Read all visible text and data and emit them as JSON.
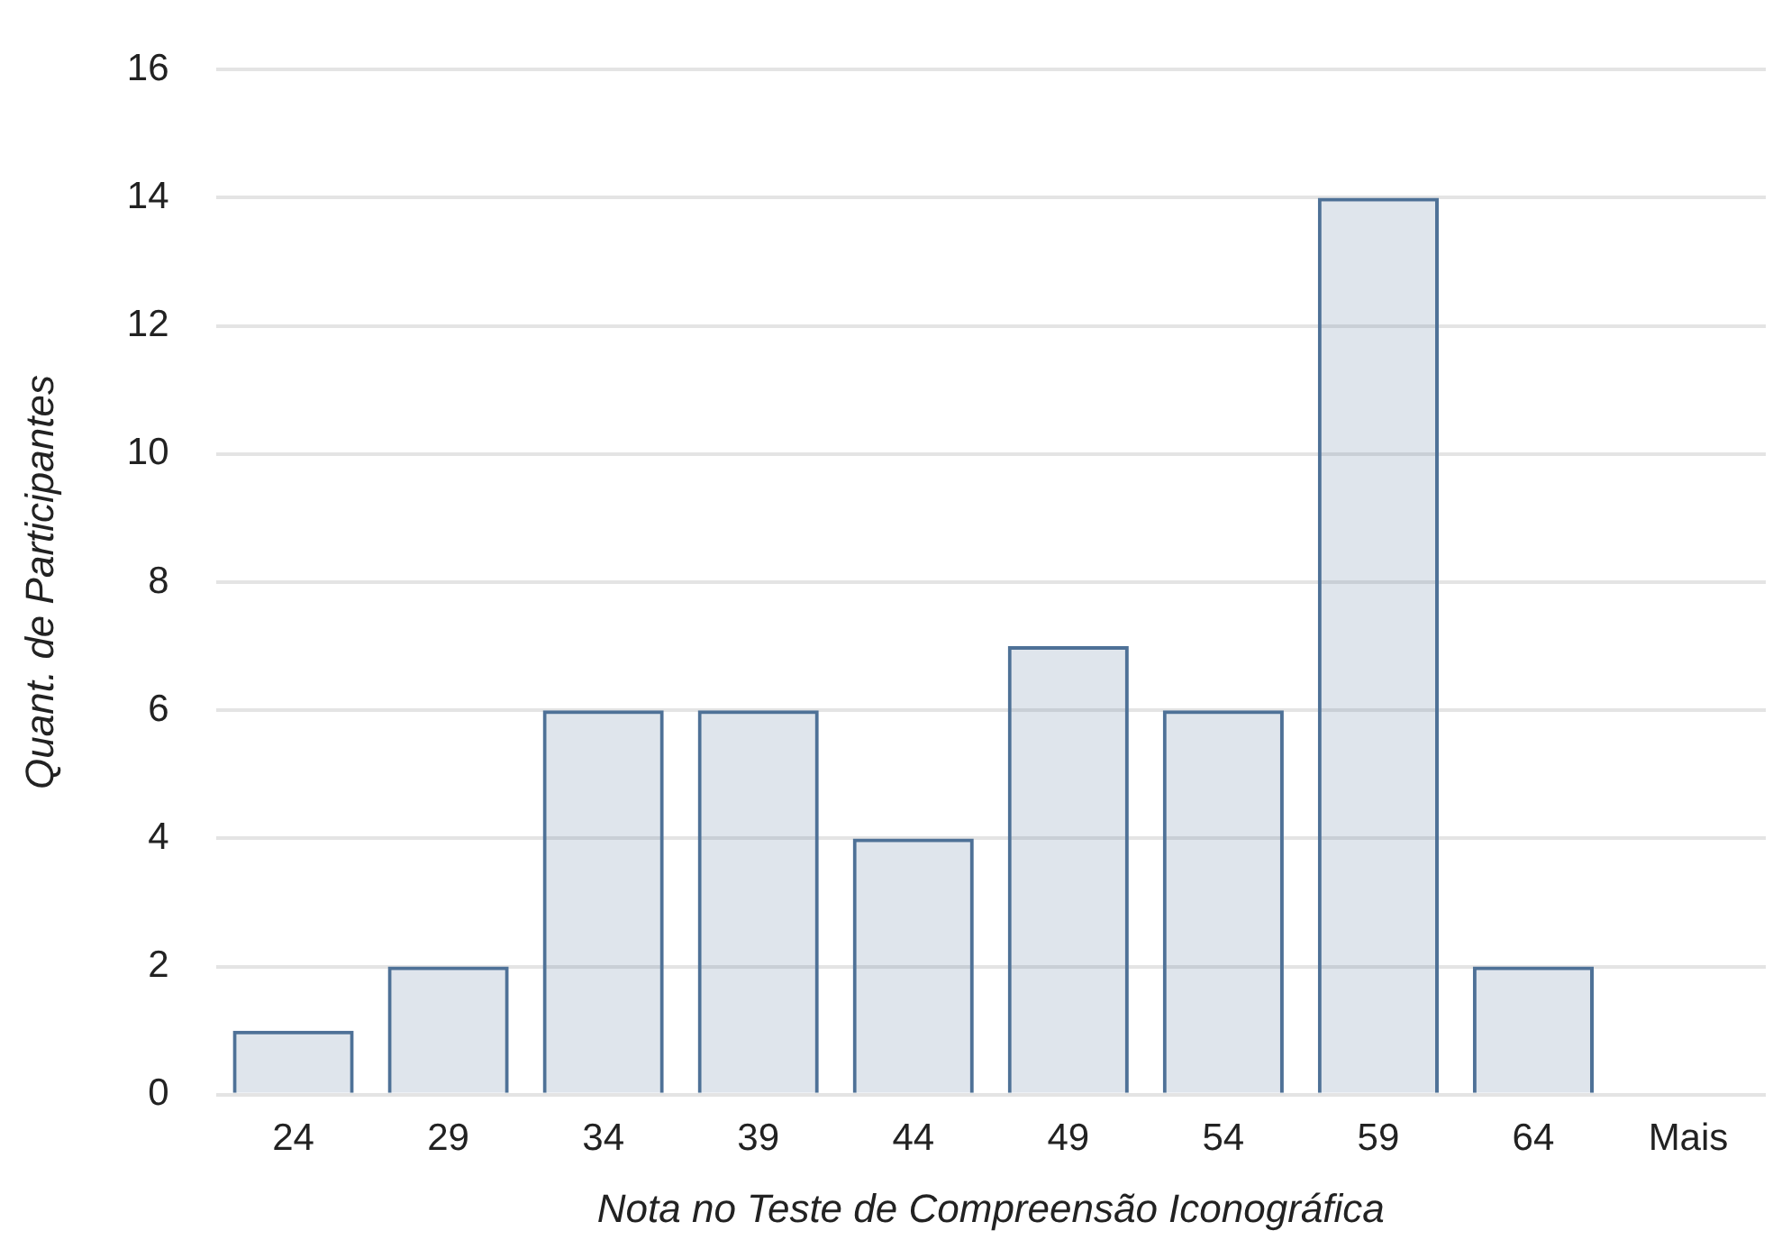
{
  "chart_data": {
    "type": "bar",
    "xlabel": "Nota no Teste de Compreensão Iconográfica",
    "ylabel": "Quant. de Participantes",
    "categories": [
      "24",
      "29",
      "34",
      "39",
      "44",
      "49",
      "54",
      "59",
      "64",
      "Mais"
    ],
    "values": [
      1,
      2,
      6,
      6,
      4,
      7,
      6,
      14,
      2,
      0
    ],
    "color": "#4e7197",
    "ylim": [
      0,
      16
    ],
    "yticks": [
      0,
      2,
      4,
      6,
      8,
      10,
      12,
      14,
      16
    ],
    "grid": "y",
    "legend": false
  }
}
